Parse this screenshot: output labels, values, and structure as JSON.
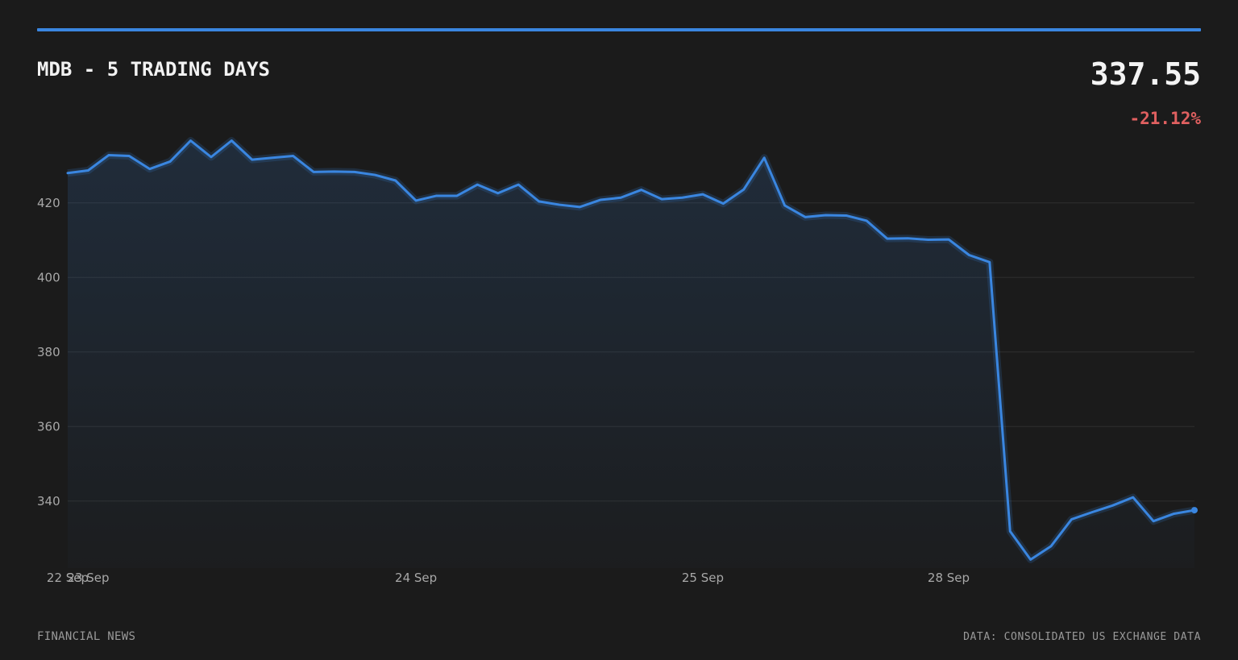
{
  "header": {
    "title": "MDB - 5 TRADING DAYS",
    "price": "337.55",
    "change": "-21.12%"
  },
  "footer": {
    "source_left": "FINANCIAL NEWS",
    "source_right": "DATA: CONSOLIDATED US EXCHANGE DATA"
  },
  "colors": {
    "accent": "#3a86e0",
    "negative": "#e06060",
    "background": "#1b1b1b",
    "grid": "#2e2e2e"
  },
  "chart_data": {
    "type": "line",
    "title": "MDB - 5 TRADING DAYS",
    "xlabel": "",
    "ylabel": "",
    "ylim": [
      322,
      442
    ],
    "yticks": [
      340,
      360,
      380,
      400,
      420
    ],
    "xticks": [
      {
        "label": "22 Sep",
        "index": 0
      },
      {
        "label": "23 Sep",
        "index": 1
      },
      {
        "label": "24 Sep",
        "index": 17
      },
      {
        "label": "25 Sep",
        "index": 31
      },
      {
        "label": "28 Sep",
        "index": 43
      }
    ],
    "grid": true,
    "legend": "none",
    "series": [
      {
        "values": [
          428.0,
          428.7,
          432.8,
          432.6,
          429.1,
          431.1,
          436.7,
          432.3,
          436.7,
          431.6,
          432.1,
          432.6,
          428.3,
          428.4,
          428.3,
          427.5,
          426.0,
          420.6,
          421.9,
          421.9,
          424.9,
          422.6,
          424.9,
          420.4,
          419.5,
          418.9,
          420.8,
          421.4,
          423.5,
          421.0,
          421.4,
          422.3,
          419.8,
          423.6,
          432.1,
          419.3,
          416.2,
          416.7,
          416.6,
          415.2,
          410.4,
          410.5,
          410.1,
          410.2,
          406.0,
          404.1,
          331.9,
          324.3,
          327.9,
          335.1,
          337.0,
          338.8,
          341.0,
          334.6,
          336.6,
          337.55
        ]
      }
    ]
  }
}
